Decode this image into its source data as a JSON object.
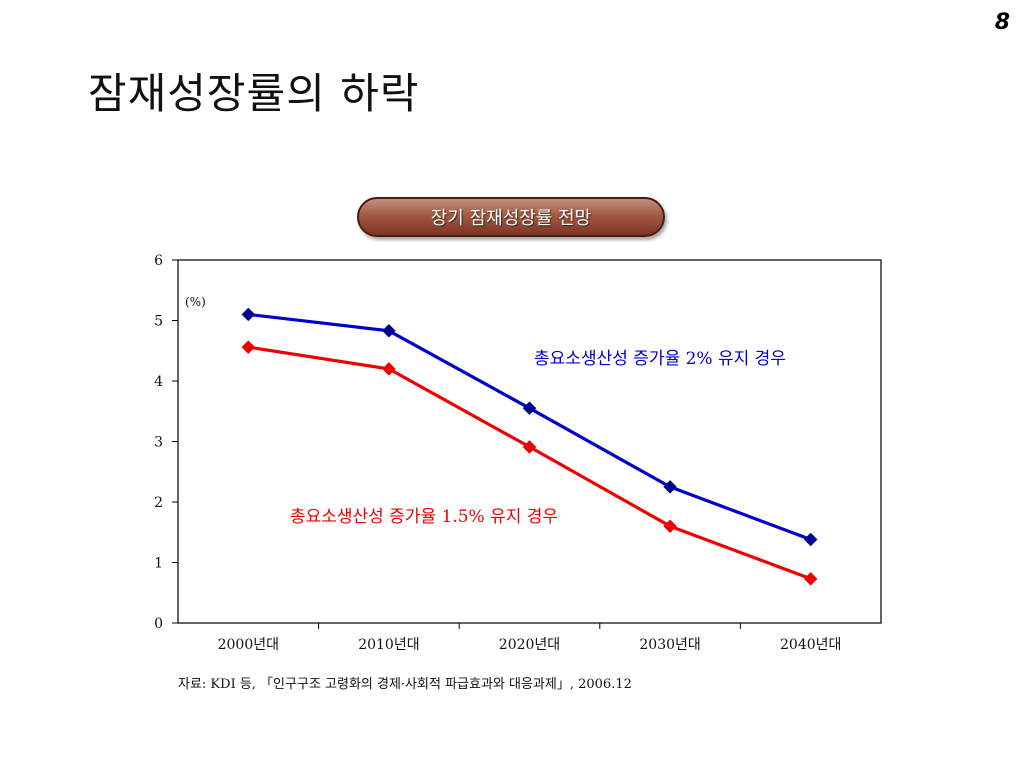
{
  "page": {
    "number": "8",
    "title": "잠재성장률의 하락"
  },
  "chart_badge": "장기 잠재성장률 전망",
  "source_note": "자료: KDI 등, 「인구구조 고령화의 경제·사회적 파급효과와 대응과제」, 2006.12",
  "chart_data": {
    "type": "line",
    "title": "장기 잠재성장률 전망",
    "unit_label": "(%)",
    "categories": [
      "2000년대",
      "2010년대",
      "2020년대",
      "2030년대",
      "2040년대"
    ],
    "y_ticks": [
      "0",
      "1",
      "2",
      "3",
      "4",
      "5",
      "6"
    ],
    "ylim": [
      0,
      6
    ],
    "grid": false,
    "series": [
      {
        "name": "총요소생산성 증가율 2% 유지 경우",
        "values": [
          5.1,
          4.83,
          3.55,
          2.25,
          1.38
        ],
        "color": "#0000cc",
        "marker_color": "#00008b"
      },
      {
        "name": "총요소생산성 증가율 1.5% 유지 경우",
        "values": [
          4.56,
          4.2,
          2.91,
          1.6,
          0.73
        ],
        "color": "#ee0000",
        "marker_color": "#ee0000"
      }
    ]
  }
}
